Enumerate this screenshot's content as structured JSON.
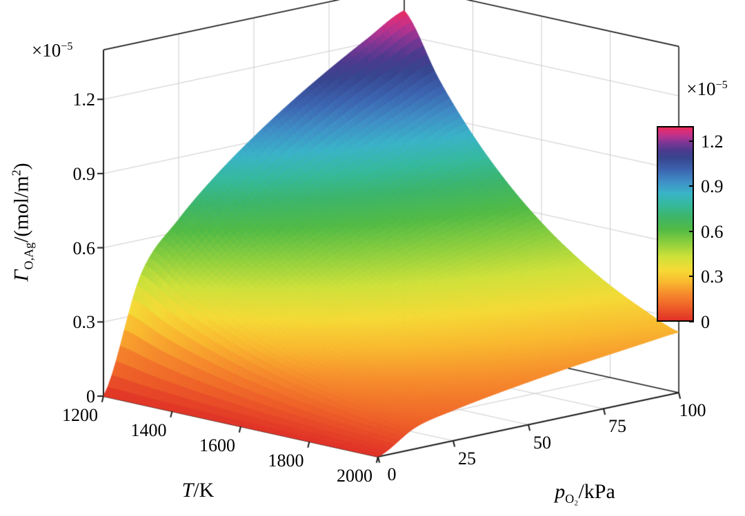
{
  "chart_data": {
    "type": "surface",
    "title": "",
    "xlabel": {
      "symbol": "T",
      "suffix": "/K"
    },
    "ylabel": {
      "symbol": "p",
      "sub": "O₂",
      "suffix": "/kPa"
    },
    "zlabel": {
      "symbol": "Γ",
      "sub": "O,Ag",
      "mid": "/(mol/m",
      "sup": "2",
      "end": ")"
    },
    "z_scale": {
      "base": "×10",
      "exp": "−5"
    },
    "colorbar_scale": {
      "base": "×10",
      "exp": "−5"
    },
    "x_ticks": [
      1200,
      1400,
      1600,
      1800,
      2000
    ],
    "y_ticks": [
      0,
      25,
      50,
      75,
      100
    ],
    "z_ticks": [
      0,
      0.3,
      0.6,
      0.9,
      1.2
    ],
    "colorbar_ticks": [
      0,
      0.3,
      0.6,
      0.9,
      1.2
    ],
    "x_range": [
      1200,
      2000
    ],
    "y_range": [
      0,
      100
    ],
    "z_axis_range": [
      0,
      1.4
    ],
    "color_domain": [
      0,
      1.3
    ],
    "z_grid_unit": "1e-5 mol/m²",
    "x_values": [
      1200,
      1300,
      1400,
      1500,
      1600,
      1700,
      1800,
      1900,
      2000
    ],
    "y_values": [
      0,
      12.5,
      25,
      37.5,
      50,
      62.5,
      75,
      87.5,
      100
    ],
    "z_grid": [
      [
        0,
        0.46,
        0.65,
        0.796,
        0.919,
        1.028,
        1.126,
        1.216,
        1.3
      ],
      [
        0,
        0.373,
        0.528,
        0.646,
        0.746,
        0.834,
        0.914,
        0.987,
        1.055
      ],
      [
        0,
        0.303,
        0.429,
        0.525,
        0.606,
        0.678,
        0.742,
        0.801,
        0.857
      ],
      [
        0,
        0.246,
        0.348,
        0.426,
        0.492,
        0.55,
        0.603,
        0.651,
        0.696
      ],
      [
        0,
        0.2,
        0.283,
        0.346,
        0.4,
        0.447,
        0.489,
        0.528,
        0.565
      ],
      [
        0,
        0.162,
        0.23,
        0.281,
        0.325,
        0.363,
        0.398,
        0.429,
        0.459
      ],
      [
        0,
        0.132,
        0.186,
        0.228,
        0.263,
        0.294,
        0.322,
        0.348,
        0.372
      ],
      [
        0,
        0.107,
        0.151,
        0.185,
        0.214,
        0.239,
        0.262,
        0.282,
        0.302
      ],
      [
        0,
        0.087,
        0.123,
        0.15,
        0.173,
        0.194,
        0.212,
        0.229,
        0.245
      ]
    ],
    "colormap": [
      {
        "t": 0.0,
        "color": "#e03127"
      },
      {
        "t": 0.07,
        "color": "#ee5f28"
      },
      {
        "t": 0.14,
        "color": "#f68c2c"
      },
      {
        "t": 0.2,
        "color": "#f9b92f"
      },
      {
        "t": 0.26,
        "color": "#f5da36"
      },
      {
        "t": 0.33,
        "color": "#cfe13a"
      },
      {
        "t": 0.4,
        "color": "#8ecf3e"
      },
      {
        "t": 0.47,
        "color": "#52bb45"
      },
      {
        "t": 0.54,
        "color": "#3cb56b"
      },
      {
        "t": 0.6,
        "color": "#35b99d"
      },
      {
        "t": 0.66,
        "color": "#3ab3c8"
      },
      {
        "t": 0.72,
        "color": "#3f8ec6"
      },
      {
        "t": 0.78,
        "color": "#3c64b0"
      },
      {
        "t": 0.84,
        "color": "#37458f"
      },
      {
        "t": 0.88,
        "color": "#4a3a8e"
      },
      {
        "t": 0.92,
        "color": "#7c3694"
      },
      {
        "t": 0.95,
        "color": "#b13390"
      },
      {
        "t": 0.98,
        "color": "#d92f7c"
      },
      {
        "t": 1.0,
        "color": "#e62a55"
      }
    ],
    "grid_color": "#cccccc",
    "box_color": "#1a1a1a",
    "background": "#ffffff",
    "legend_position": "right-colorbar",
    "grid": true
  }
}
